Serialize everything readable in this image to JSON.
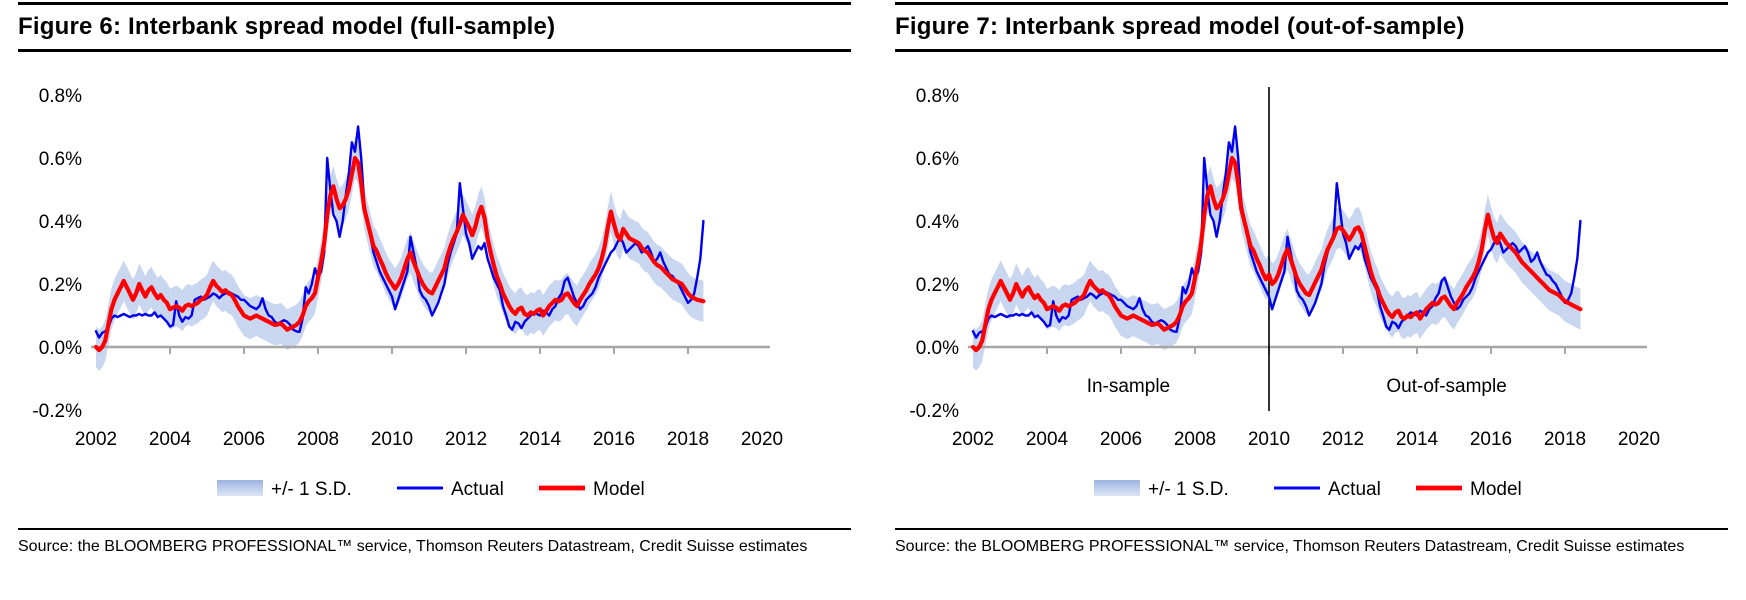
{
  "page": {
    "background": "#ffffff"
  },
  "palette": {
    "actual_blue": "#0000ee",
    "model_red": "#ff0000",
    "band_fill": "#c9d6f0",
    "band_swatch_top": "#9db4e0",
    "band_swatch_bottom": "#dde6f6",
    "axis_gray": "#a6a6a6",
    "divider_black": "#000000",
    "text_black": "#000000"
  },
  "figures": [
    {
      "title": "Figure 6: Interbank spread model (full-sample)",
      "source": "Source: the BLOOMBERG PROFESSIONAL™ service, Thomson Reuters Datastream, Credit Suisse estimates"
    },
    {
      "title": "Figure 7: Interbank spread model (out-of-sample)",
      "source": "Source: the BLOOMBERG PROFESSIONAL™ service, Thomson Reuters Datastream, Credit Suisse estimates"
    }
  ],
  "chart_data": [
    {
      "type": "line",
      "title": "Figure 6: Interbank spread model (full-sample)",
      "xlabel": "",
      "ylabel": "",
      "xlim": [
        2001.8,
        2020.5
      ],
      "ylim": [
        -0.2,
        0.8
      ],
      "grid": false,
      "legend_position": "bottom-center",
      "x_tick_labels": [
        "2002",
        "2004",
        "2006",
        "2008",
        "2010",
        "2012",
        "2014",
        "2016",
        "2018",
        "2020"
      ],
      "x_tick_values": [
        2002,
        2004,
        2006,
        2008,
        2010,
        2012,
        2014,
        2016,
        2018,
        2020
      ],
      "tick_mark_years": [
        2004,
        2006,
        2008,
        2010,
        2012,
        2014,
        2016,
        2018
      ],
      "y_tick_labels": [
        "0.8%",
        "0.6%",
        "0.4%",
        "0.2%",
        "0.0%",
        "-0.2%"
      ],
      "y_tick_values": [
        0.8,
        0.6,
        0.4,
        0.2,
        0.0,
        -0.2
      ],
      "x": {
        "start": 2002,
        "step_years": 0.083333,
        "end": 2018.42
      },
      "band": {
        "label": "+/- 1 S.D.",
        "around": "Model",
        "half_width": 0.065
      },
      "legend": [
        {
          "type": "band",
          "label": "+/- 1 S.D."
        },
        {
          "type": "line",
          "label": "Actual",
          "series": "Actual"
        },
        {
          "type": "line",
          "label": "Model",
          "series": "Model"
        }
      ],
      "divider_x": null,
      "annotations": [],
      "series": [
        {
          "name": "Actual",
          "role": "actual",
          "stroke_width": 2.4,
          "values": [
            0.05,
            0.03,
            0.045,
            0.05,
            0.06,
            0.09,
            0.1,
            0.095,
            0.1,
            0.105,
            0.1,
            0.095,
            0.1,
            0.1,
            0.105,
            0.1,
            0.105,
            0.1,
            0.1,
            0.11,
            0.095,
            0.1,
            0.09,
            0.08,
            0.065,
            0.07,
            0.145,
            0.1,
            0.08,
            0.095,
            0.09,
            0.1,
            0.15,
            0.155,
            0.16,
            0.15,
            0.155,
            0.16,
            0.17,
            0.165,
            0.155,
            0.165,
            0.17,
            0.175,
            0.17,
            0.165,
            0.16,
            0.15,
            0.15,
            0.14,
            0.13,
            0.125,
            0.12,
            0.13,
            0.155,
            0.12,
            0.1,
            0.095,
            0.08,
            0.075,
            0.08,
            0.085,
            0.08,
            0.07,
            0.055,
            0.05,
            0.048,
            0.09,
            0.19,
            0.17,
            0.2,
            0.25,
            0.22,
            0.24,
            0.3,
            0.6,
            0.5,
            0.42,
            0.4,
            0.35,
            0.4,
            0.48,
            0.55,
            0.65,
            0.62,
            0.7,
            0.6,
            0.46,
            0.4,
            0.35,
            0.3,
            0.27,
            0.24,
            0.22,
            0.2,
            0.18,
            0.16,
            0.12,
            0.15,
            0.18,
            0.21,
            0.24,
            0.35,
            0.3,
            0.25,
            0.18,
            0.16,
            0.15,
            0.13,
            0.1,
            0.12,
            0.14,
            0.17,
            0.2,
            0.26,
            0.3,
            0.33,
            0.36,
            0.52,
            0.44,
            0.36,
            0.33,
            0.28,
            0.3,
            0.32,
            0.31,
            0.33,
            0.28,
            0.25,
            0.22,
            0.2,
            0.18,
            0.13,
            0.1,
            0.065,
            0.055,
            0.08,
            0.075,
            0.06,
            0.08,
            0.09,
            0.1,
            0.11,
            0.105,
            0.1,
            0.115,
            0.11,
            0.1,
            0.12,
            0.13,
            0.155,
            0.17,
            0.21,
            0.22,
            0.19,
            0.16,
            0.14,
            0.12,
            0.13,
            0.15,
            0.16,
            0.17,
            0.19,
            0.22,
            0.24,
            0.26,
            0.28,
            0.3,
            0.31,
            0.33,
            0.35,
            0.33,
            0.3,
            0.31,
            0.32,
            0.33,
            0.32,
            0.3,
            0.31,
            0.32,
            0.3,
            0.27,
            0.28,
            0.3,
            0.27,
            0.25,
            0.23,
            0.225,
            0.21,
            0.2,
            0.18,
            0.16,
            0.14,
            0.15,
            0.17,
            0.22,
            0.28,
            0.4
          ]
        },
        {
          "name": "Model",
          "role": "model",
          "stroke_width": 4.2,
          "values": [
            0.0,
            -0.01,
            0.0,
            0.02,
            0.07,
            0.12,
            0.15,
            0.17,
            0.19,
            0.21,
            0.19,
            0.17,
            0.15,
            0.17,
            0.2,
            0.18,
            0.16,
            0.18,
            0.19,
            0.17,
            0.155,
            0.165,
            0.15,
            0.14,
            0.12,
            0.125,
            0.13,
            0.125,
            0.115,
            0.13,
            0.135,
            0.13,
            0.135,
            0.14,
            0.15,
            0.155,
            0.165,
            0.19,
            0.21,
            0.195,
            0.185,
            0.175,
            0.18,
            0.17,
            0.165,
            0.15,
            0.13,
            0.115,
            0.1,
            0.095,
            0.09,
            0.095,
            0.1,
            0.095,
            0.09,
            0.085,
            0.08,
            0.075,
            0.07,
            0.072,
            0.075,
            0.065,
            0.055,
            0.06,
            0.065,
            0.07,
            0.08,
            0.1,
            0.13,
            0.145,
            0.155,
            0.17,
            0.22,
            0.27,
            0.33,
            0.42,
            0.48,
            0.51,
            0.47,
            0.44,
            0.45,
            0.47,
            0.5,
            0.55,
            0.6,
            0.585,
            0.52,
            0.44,
            0.4,
            0.36,
            0.32,
            0.305,
            0.28,
            0.26,
            0.235,
            0.215,
            0.2,
            0.185,
            0.2,
            0.22,
            0.25,
            0.28,
            0.3,
            0.27,
            0.245,
            0.22,
            0.2,
            0.185,
            0.175,
            0.17,
            0.19,
            0.21,
            0.23,
            0.25,
            0.29,
            0.32,
            0.345,
            0.365,
            0.39,
            0.42,
            0.4,
            0.38,
            0.355,
            0.38,
            0.42,
            0.445,
            0.41,
            0.345,
            0.3,
            0.26,
            0.225,
            0.2,
            0.17,
            0.15,
            0.13,
            0.115,
            0.105,
            0.12,
            0.125,
            0.105,
            0.1,
            0.11,
            0.105,
            0.115,
            0.12,
            0.1,
            0.115,
            0.13,
            0.14,
            0.15,
            0.145,
            0.15,
            0.165,
            0.17,
            0.155,
            0.14,
            0.13,
            0.15,
            0.165,
            0.18,
            0.2,
            0.215,
            0.23,
            0.25,
            0.28,
            0.32,
            0.38,
            0.43,
            0.39,
            0.355,
            0.34,
            0.375,
            0.36,
            0.345,
            0.34,
            0.335,
            0.33,
            0.315,
            0.305,
            0.3,
            0.285,
            0.27,
            0.26,
            0.255,
            0.245,
            0.235,
            0.225,
            0.215,
            0.21,
            0.205,
            0.2,
            0.185,
            0.17,
            0.16,
            0.155,
            0.15,
            0.148,
            0.145
          ]
        }
      ]
    },
    {
      "type": "line",
      "title": "Figure 7: Interbank spread model (out-of-sample)",
      "xlabel": "",
      "ylabel": "",
      "xlim": [
        2001.8,
        2020.5
      ],
      "ylim": [
        -0.2,
        0.8
      ],
      "grid": false,
      "legend_position": "bottom-center",
      "x_tick_labels": [
        "2002",
        "2004",
        "2006",
        "2008",
        "2010",
        "2012",
        "2014",
        "2016",
        "2018",
        "2020"
      ],
      "x_tick_values": [
        2002,
        2004,
        2006,
        2008,
        2010,
        2012,
        2014,
        2016,
        2018,
        2020
      ],
      "tick_mark_years": [
        2004,
        2006,
        2008,
        2010,
        2012,
        2014,
        2016,
        2018
      ],
      "y_tick_labels": [
        "0.8%",
        "0.6%",
        "0.4%",
        "0.2%",
        "0.0%",
        "-0.2%"
      ],
      "y_tick_values": [
        0.8,
        0.6,
        0.4,
        0.2,
        0.0,
        -0.2
      ],
      "x": {
        "start": 2002,
        "step_years": 0.083333,
        "end": 2018.42
      },
      "band": {
        "label": "+/- 1 S.D.",
        "around": "Model",
        "half_width": 0.065
      },
      "legend": [
        {
          "type": "band",
          "label": "+/- 1 S.D."
        },
        {
          "type": "line",
          "label": "Actual",
          "series": "Actual"
        },
        {
          "type": "line",
          "label": "Model",
          "series": "Model"
        }
      ],
      "divider_x": 2010,
      "annotations": [
        {
          "label": "In-sample",
          "x": 2006.2
        },
        {
          "label": "Out-of-sample",
          "x": 2014.8
        }
      ],
      "series": [
        {
          "name": "Actual",
          "role": "actual",
          "stroke_width": 2.4,
          "values": [
            0.05,
            0.03,
            0.045,
            0.05,
            0.06,
            0.09,
            0.1,
            0.095,
            0.1,
            0.105,
            0.1,
            0.095,
            0.1,
            0.1,
            0.105,
            0.1,
            0.105,
            0.1,
            0.1,
            0.11,
            0.095,
            0.1,
            0.09,
            0.08,
            0.065,
            0.07,
            0.145,
            0.1,
            0.08,
            0.095,
            0.09,
            0.1,
            0.15,
            0.155,
            0.16,
            0.15,
            0.155,
            0.16,
            0.17,
            0.165,
            0.155,
            0.165,
            0.17,
            0.175,
            0.17,
            0.165,
            0.16,
            0.15,
            0.15,
            0.14,
            0.13,
            0.125,
            0.12,
            0.13,
            0.155,
            0.12,
            0.1,
            0.095,
            0.08,
            0.075,
            0.08,
            0.085,
            0.08,
            0.07,
            0.055,
            0.05,
            0.048,
            0.09,
            0.19,
            0.17,
            0.2,
            0.25,
            0.22,
            0.24,
            0.3,
            0.6,
            0.5,
            0.42,
            0.4,
            0.35,
            0.4,
            0.48,
            0.55,
            0.65,
            0.62,
            0.7,
            0.6,
            0.46,
            0.4,
            0.35,
            0.3,
            0.27,
            0.24,
            0.22,
            0.2,
            0.18,
            0.16,
            0.12,
            0.15,
            0.18,
            0.21,
            0.24,
            0.35,
            0.3,
            0.25,
            0.18,
            0.16,
            0.15,
            0.13,
            0.1,
            0.12,
            0.14,
            0.17,
            0.2,
            0.26,
            0.3,
            0.33,
            0.36,
            0.52,
            0.44,
            0.36,
            0.33,
            0.28,
            0.3,
            0.32,
            0.31,
            0.33,
            0.28,
            0.25,
            0.22,
            0.2,
            0.18,
            0.13,
            0.1,
            0.065,
            0.055,
            0.08,
            0.075,
            0.06,
            0.08,
            0.09,
            0.1,
            0.11,
            0.105,
            0.1,
            0.115,
            0.11,
            0.1,
            0.12,
            0.13,
            0.155,
            0.17,
            0.21,
            0.22,
            0.19,
            0.16,
            0.14,
            0.12,
            0.13,
            0.15,
            0.16,
            0.17,
            0.19,
            0.22,
            0.24,
            0.26,
            0.28,
            0.3,
            0.31,
            0.33,
            0.35,
            0.33,
            0.3,
            0.31,
            0.32,
            0.33,
            0.32,
            0.3,
            0.31,
            0.32,
            0.3,
            0.27,
            0.28,
            0.3,
            0.27,
            0.25,
            0.23,
            0.225,
            0.21,
            0.2,
            0.18,
            0.16,
            0.14,
            0.15,
            0.17,
            0.22,
            0.28,
            0.4
          ]
        },
        {
          "name": "Model",
          "role": "model",
          "stroke_width": 4.2,
          "values": [
            0.0,
            -0.01,
            0.0,
            0.02,
            0.07,
            0.12,
            0.15,
            0.17,
            0.19,
            0.21,
            0.19,
            0.17,
            0.15,
            0.17,
            0.2,
            0.18,
            0.16,
            0.18,
            0.19,
            0.17,
            0.155,
            0.165,
            0.15,
            0.14,
            0.12,
            0.125,
            0.13,
            0.125,
            0.115,
            0.13,
            0.135,
            0.13,
            0.135,
            0.14,
            0.15,
            0.155,
            0.165,
            0.19,
            0.21,
            0.195,
            0.185,
            0.175,
            0.18,
            0.17,
            0.165,
            0.15,
            0.13,
            0.115,
            0.1,
            0.095,
            0.09,
            0.095,
            0.1,
            0.095,
            0.09,
            0.085,
            0.08,
            0.075,
            0.07,
            0.072,
            0.075,
            0.065,
            0.055,
            0.06,
            0.065,
            0.07,
            0.08,
            0.1,
            0.13,
            0.145,
            0.155,
            0.17,
            0.22,
            0.27,
            0.33,
            0.42,
            0.48,
            0.51,
            0.47,
            0.44,
            0.45,
            0.47,
            0.5,
            0.55,
            0.6,
            0.585,
            0.52,
            0.44,
            0.4,
            0.36,
            0.32,
            0.305,
            0.28,
            0.26,
            0.235,
            0.215,
            0.23,
            0.2,
            0.21,
            0.23,
            0.26,
            0.29,
            0.31,
            0.28,
            0.25,
            0.22,
            0.2,
            0.185,
            0.17,
            0.165,
            0.185,
            0.205,
            0.225,
            0.245,
            0.28,
            0.31,
            0.33,
            0.35,
            0.375,
            0.38,
            0.37,
            0.355,
            0.34,
            0.355,
            0.375,
            0.38,
            0.36,
            0.32,
            0.28,
            0.24,
            0.21,
            0.19,
            0.16,
            0.14,
            0.12,
            0.105,
            0.095,
            0.11,
            0.115,
            0.095,
            0.09,
            0.1,
            0.095,
            0.105,
            0.11,
            0.09,
            0.105,
            0.12,
            0.13,
            0.14,
            0.135,
            0.14,
            0.155,
            0.16,
            0.145,
            0.13,
            0.12,
            0.14,
            0.155,
            0.17,
            0.19,
            0.205,
            0.22,
            0.24,
            0.27,
            0.31,
            0.37,
            0.42,
            0.38,
            0.345,
            0.33,
            0.36,
            0.345,
            0.33,
            0.32,
            0.31,
            0.3,
            0.285,
            0.27,
            0.26,
            0.25,
            0.24,
            0.23,
            0.22,
            0.21,
            0.2,
            0.19,
            0.18,
            0.175,
            0.17,
            0.165,
            0.155,
            0.145,
            0.14,
            0.135,
            0.13,
            0.125,
            0.12
          ]
        }
      ]
    }
  ]
}
